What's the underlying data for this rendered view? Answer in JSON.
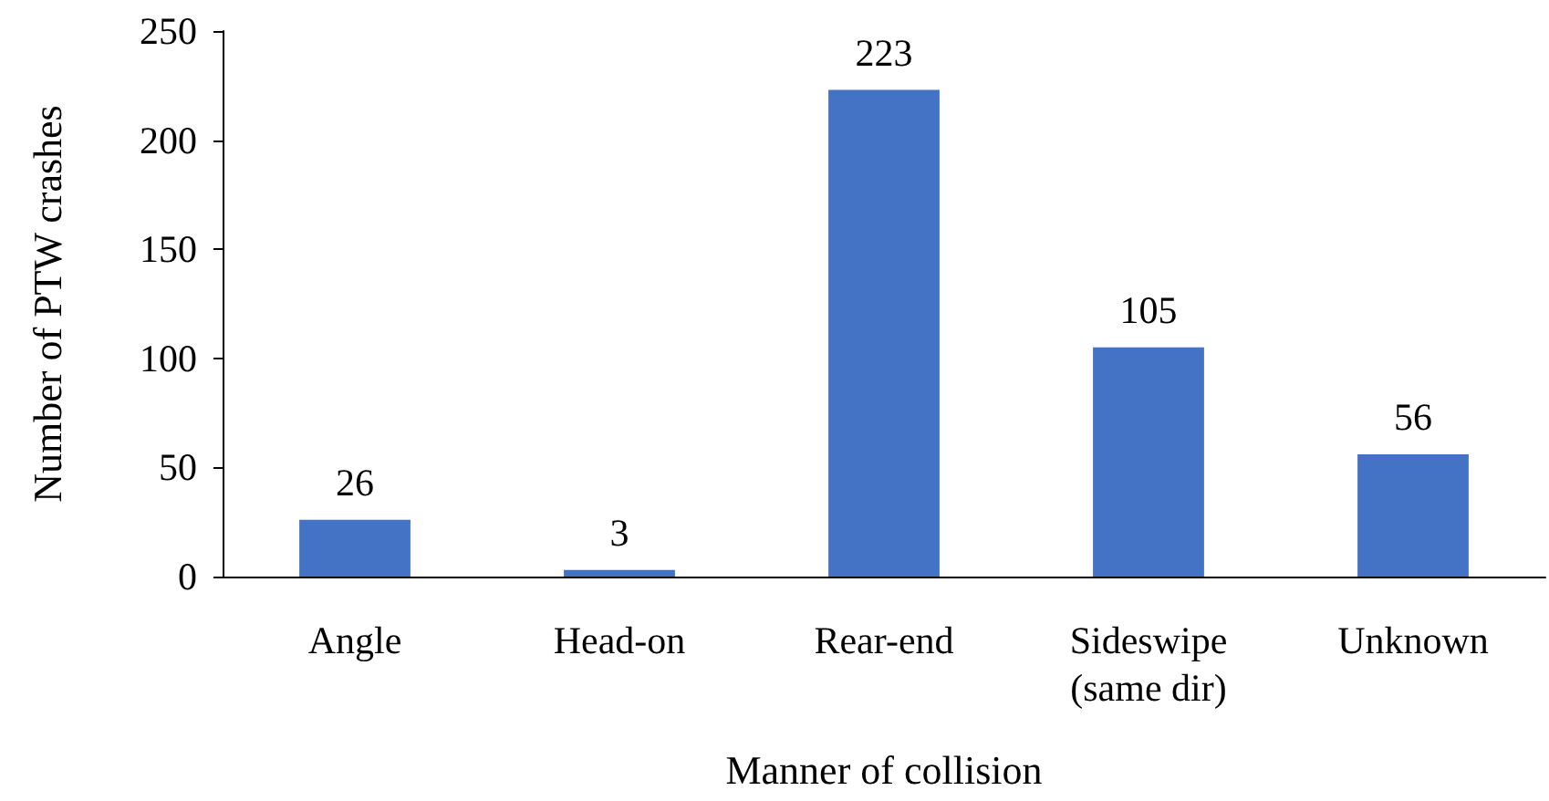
{
  "chart_data": {
    "type": "bar",
    "xlabel": "Manner of collision",
    "ylabel": "Number of PTW crashes",
    "categories": [
      "Angle",
      "Head-on",
      "Rear-end",
      "Sideswipe\n(same dir)",
      "Unknown"
    ],
    "values": [
      26,
      3,
      223,
      105,
      56
    ],
    "color": "#4472c4",
    "ylim": [
      0,
      250
    ],
    "yticks": [
      0,
      50,
      100,
      150,
      200,
      250
    ],
    "grid": false,
    "data_labels": true
  }
}
